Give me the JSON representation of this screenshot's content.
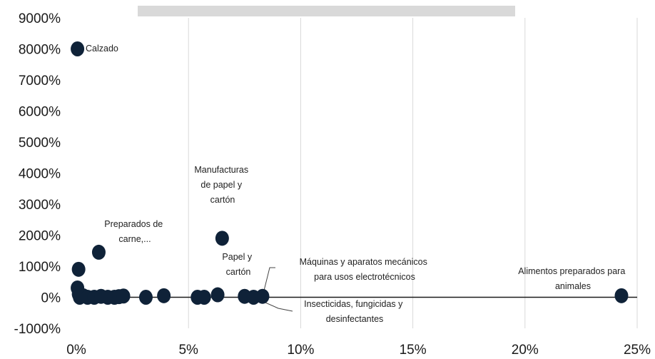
{
  "chart_data": {
    "type": "scatter",
    "title": "",
    "xlabel": "",
    "ylabel": "",
    "xlim": [
      0,
      25
    ],
    "ylim": [
      -1000,
      9000
    ],
    "x_ticks": [
      0,
      5,
      10,
      15,
      20,
      25
    ],
    "x_tick_labels": [
      "0%",
      "5%",
      "10%",
      "15%",
      "20%",
      "25%"
    ],
    "y_ticks": [
      -1000,
      0,
      1000,
      2000,
      3000,
      4000,
      5000,
      6000,
      7000,
      8000,
      9000
    ],
    "y_tick_labels": [
      "-1000%",
      "0%",
      "1000%",
      "2000%",
      "3000%",
      "4000%",
      "5000%",
      "6000%",
      "7000%",
      "8000%",
      "9000%"
    ],
    "grid": {
      "vertical": true,
      "horizontal": false
    },
    "legend": "none",
    "colors": {
      "marker": "#0f2238",
      "grid": "#d9d9d9",
      "zero_line": "#1a1a1a",
      "legend_bar": "#d9d9d9"
    },
    "points": [
      {
        "x": 0.05,
        "y": 8000
      },
      {
        "x": 0.1,
        "y": 900
      },
      {
        "x": 1.0,
        "y": 1450
      },
      {
        "x": 6.5,
        "y": 1900
      },
      {
        "x": 0.05,
        "y": 300
      },
      {
        "x": 0.1,
        "y": 100
      },
      {
        "x": 0.15,
        "y": 0
      },
      {
        "x": 0.3,
        "y": 50
      },
      {
        "x": 0.5,
        "y": 0
      },
      {
        "x": 0.8,
        "y": 0
      },
      {
        "x": 1.1,
        "y": 30
      },
      {
        "x": 1.4,
        "y": 0
      },
      {
        "x": 1.7,
        "y": 0
      },
      {
        "x": 1.9,
        "y": 20
      },
      {
        "x": 2.1,
        "y": 40
      },
      {
        "x": 3.1,
        "y": 0
      },
      {
        "x": 3.9,
        "y": 50
      },
      {
        "x": 5.4,
        "y": 0
      },
      {
        "x": 5.7,
        "y": 0
      },
      {
        "x": 6.3,
        "y": 80
      },
      {
        "x": 7.5,
        "y": 30
      },
      {
        "x": 7.9,
        "y": 0
      },
      {
        "x": 8.3,
        "y": 30
      },
      {
        "x": 24.3,
        "y": 50
      }
    ],
    "annotations": [
      {
        "lines": [
          "Calzado"
        ],
        "x": 0.05,
        "y": 8000
      },
      {
        "lines": [
          "Preparados de",
          "carne,..."
        ],
        "x": 1.0,
        "y": 1450
      },
      {
        "lines": [
          "Manufacturas",
          "de papel y",
          "cartón"
        ],
        "x": 6.5,
        "y": 1900
      },
      {
        "lines": [
          "Papel y",
          "cartón"
        ],
        "x": 7.5,
        "y": 30
      },
      {
        "lines": [
          "Máquinas y aparatos mecánicos",
          "para usos electrotécnicos"
        ],
        "x": 8.3,
        "y": 30
      },
      {
        "lines": [
          "Insecticidas, fungicidas y",
          "desinfectantes"
        ],
        "x": 7.9,
        "y": 0
      },
      {
        "lines": [
          "Alimentos preparados para",
          "animales"
        ],
        "x": 24.3,
        "y": 50
      }
    ]
  }
}
